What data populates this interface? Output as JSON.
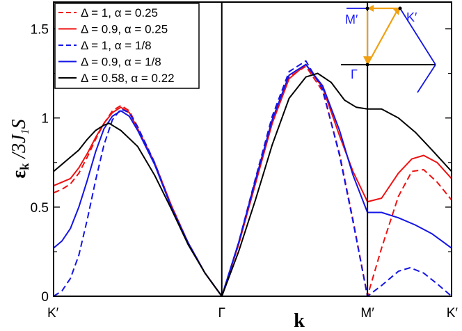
{
  "chart_data": {
    "type": "line",
    "xlabel": "k",
    "ylabel_main": "ε",
    "ylabel_sub": "k",
    "ylabel_rest": " /3J",
    "ylabel_sub2": "1",
    "ylabel_end": "S",
    "x_ticks": [
      {
        "x": 0,
        "label": "K′"
      },
      {
        "x": 1,
        "label": "Γ"
      },
      {
        "x": 1.866,
        "label": "M′"
      },
      {
        "x": 2.366,
        "label": "K′"
      }
    ],
    "y_ticks": [
      {
        "y": 0,
        "label": "0"
      },
      {
        "y": 0.5,
        "label": "0.5"
      },
      {
        "y": 1,
        "label": "1"
      },
      {
        "y": 1.5,
        "label": "1.5"
      }
    ],
    "xlim": [
      0,
      2.366
    ],
    "ylim": [
      0,
      1.65
    ],
    "grid": false,
    "legend_position": "top-left",
    "series": [
      {
        "name": "Δ = 1, α = 0.25",
        "color": "#ee1111",
        "dash": true,
        "points": [
          [
            0,
            0.58
          ],
          [
            0.05,
            0.6
          ],
          [
            0.1,
            0.63
          ],
          [
            0.15,
            0.69
          ],
          [
            0.2,
            0.78
          ],
          [
            0.25,
            0.88
          ],
          [
            0.3,
            0.97
          ],
          [
            0.35,
            1.04
          ],
          [
            0.4,
            1.07
          ],
          [
            0.45,
            1.04
          ],
          [
            0.5,
            0.95
          ],
          [
            0.6,
            0.75
          ],
          [
            0.7,
            0.51
          ],
          [
            0.8,
            0.3
          ],
          [
            0.9,
            0.13
          ],
          [
            1.0,
            0
          ],
          [
            1.1,
            0.29
          ],
          [
            1.2,
            0.64
          ],
          [
            1.3,
            0.98
          ],
          [
            1.4,
            1.23
          ],
          [
            1.5,
            1.29
          ],
          [
            1.6,
            1.15
          ],
          [
            1.7,
            0.8
          ],
          [
            1.78,
            0.43
          ],
          [
            1.866,
            0
          ],
          [
            1.95,
            0.27
          ],
          [
            2.05,
            0.56
          ],
          [
            2.13,
            0.7
          ],
          [
            2.2,
            0.71
          ],
          [
            2.28,
            0.64
          ],
          [
            2.366,
            0.54
          ]
        ]
      },
      {
        "name": "Δ = 0.9, α = 0.25",
        "color": "#ee1111",
        "dash": false,
        "points": [
          [
            0,
            0.62
          ],
          [
            0.05,
            0.64
          ],
          [
            0.1,
            0.66
          ],
          [
            0.15,
            0.72
          ],
          [
            0.2,
            0.8
          ],
          [
            0.25,
            0.89
          ],
          [
            0.3,
            0.97
          ],
          [
            0.35,
            1.03
          ],
          [
            0.4,
            1.06
          ],
          [
            0.45,
            1.03
          ],
          [
            0.5,
            0.94
          ],
          [
            0.6,
            0.75
          ],
          [
            0.7,
            0.51
          ],
          [
            0.8,
            0.3
          ],
          [
            0.9,
            0.13
          ],
          [
            1.0,
            0
          ],
          [
            1.1,
            0.29
          ],
          [
            1.2,
            0.63
          ],
          [
            1.3,
            0.97
          ],
          [
            1.4,
            1.22
          ],
          [
            1.5,
            1.3
          ],
          [
            1.6,
            1.17
          ],
          [
            1.7,
            0.9
          ],
          [
            1.78,
            0.7
          ],
          [
            1.866,
            0.53
          ],
          [
            1.95,
            0.55
          ],
          [
            2.05,
            0.69
          ],
          [
            2.13,
            0.77
          ],
          [
            2.2,
            0.79
          ],
          [
            2.28,
            0.75
          ],
          [
            2.366,
            0.66
          ]
        ]
      },
      {
        "name": "Δ = 1, α = 1/8",
        "color": "#1414e6",
        "dash": true,
        "points": [
          [
            0,
            0
          ],
          [
            0.05,
            0.03
          ],
          [
            0.1,
            0.1
          ],
          [
            0.15,
            0.23
          ],
          [
            0.2,
            0.43
          ],
          [
            0.25,
            0.65
          ],
          [
            0.3,
            0.85
          ],
          [
            0.35,
            0.99
          ],
          [
            0.4,
            1.05
          ],
          [
            0.45,
            1.03
          ],
          [
            0.5,
            0.95
          ],
          [
            0.6,
            0.75
          ],
          [
            0.7,
            0.5
          ],
          [
            0.8,
            0.3
          ],
          [
            0.9,
            0.13
          ],
          [
            1.0,
            0
          ],
          [
            1.1,
            0.3
          ],
          [
            1.2,
            0.66
          ],
          [
            1.3,
            1.01
          ],
          [
            1.4,
            1.26
          ],
          [
            1.5,
            1.32
          ],
          [
            1.6,
            1.16
          ],
          [
            1.7,
            0.79
          ],
          [
            1.78,
            0.42
          ],
          [
            1.866,
            0
          ],
          [
            1.95,
            0.06
          ],
          [
            2.05,
            0.14
          ],
          [
            2.12,
            0.16
          ],
          [
            2.2,
            0.13
          ],
          [
            2.28,
            0.07
          ],
          [
            2.366,
            0
          ]
        ]
      },
      {
        "name": "Δ = 0.9, α = 1/8",
        "color": "#1414e6",
        "dash": false,
        "points": [
          [
            0,
            0.27
          ],
          [
            0.05,
            0.31
          ],
          [
            0.1,
            0.38
          ],
          [
            0.15,
            0.5
          ],
          [
            0.2,
            0.65
          ],
          [
            0.25,
            0.81
          ],
          [
            0.3,
            0.94
          ],
          [
            0.35,
            1.01
          ],
          [
            0.4,
            1.04
          ],
          [
            0.45,
            1.01
          ],
          [
            0.5,
            0.93
          ],
          [
            0.6,
            0.74
          ],
          [
            0.7,
            0.5
          ],
          [
            0.8,
            0.3
          ],
          [
            0.9,
            0.13
          ],
          [
            1.0,
            0
          ],
          [
            1.1,
            0.3
          ],
          [
            1.2,
            0.65
          ],
          [
            1.3,
            0.99
          ],
          [
            1.4,
            1.24
          ],
          [
            1.5,
            1.3
          ],
          [
            1.6,
            1.18
          ],
          [
            1.7,
            0.93
          ],
          [
            1.78,
            0.68
          ],
          [
            1.866,
            0.47
          ],
          [
            1.95,
            0.47
          ],
          [
            2.05,
            0.44
          ],
          [
            2.15,
            0.4
          ],
          [
            2.25,
            0.35
          ],
          [
            2.366,
            0.27
          ]
        ]
      },
      {
        "name": "Δ = 0.58, α = 0.22",
        "color": "#000000",
        "dash": false,
        "points": [
          [
            0,
            0.7
          ],
          [
            0.05,
            0.74
          ],
          [
            0.1,
            0.78
          ],
          [
            0.15,
            0.82
          ],
          [
            0.2,
            0.88
          ],
          [
            0.25,
            0.93
          ],
          [
            0.3,
            0.96
          ],
          [
            0.33,
            0.97
          ],
          [
            0.4,
            0.93
          ],
          [
            0.5,
            0.84
          ],
          [
            0.6,
            0.68
          ],
          [
            0.7,
            0.49
          ],
          [
            0.8,
            0.29
          ],
          [
            0.9,
            0.13
          ],
          [
            1.0,
            0
          ],
          [
            1.1,
            0.25
          ],
          [
            1.2,
            0.54
          ],
          [
            1.3,
            0.85
          ],
          [
            1.4,
            1.11
          ],
          [
            1.5,
            1.23
          ],
          [
            1.57,
            1.25
          ],
          [
            1.65,
            1.2
          ],
          [
            1.73,
            1.1
          ],
          [
            1.8,
            1.06
          ],
          [
            1.866,
            1.05
          ],
          [
            1.95,
            1.05
          ],
          [
            2.05,
            1.0
          ],
          [
            2.15,
            0.92
          ],
          [
            2.25,
            0.82
          ],
          [
            2.366,
            0.7
          ]
        ]
      }
    ],
    "inset": {
      "labels": {
        "M": "M′",
        "K": "K′",
        "G": "Γ"
      },
      "colors": {
        "hexagon": "#1414e6",
        "path": "#f0a010",
        "axes": "#000000"
      }
    }
  }
}
